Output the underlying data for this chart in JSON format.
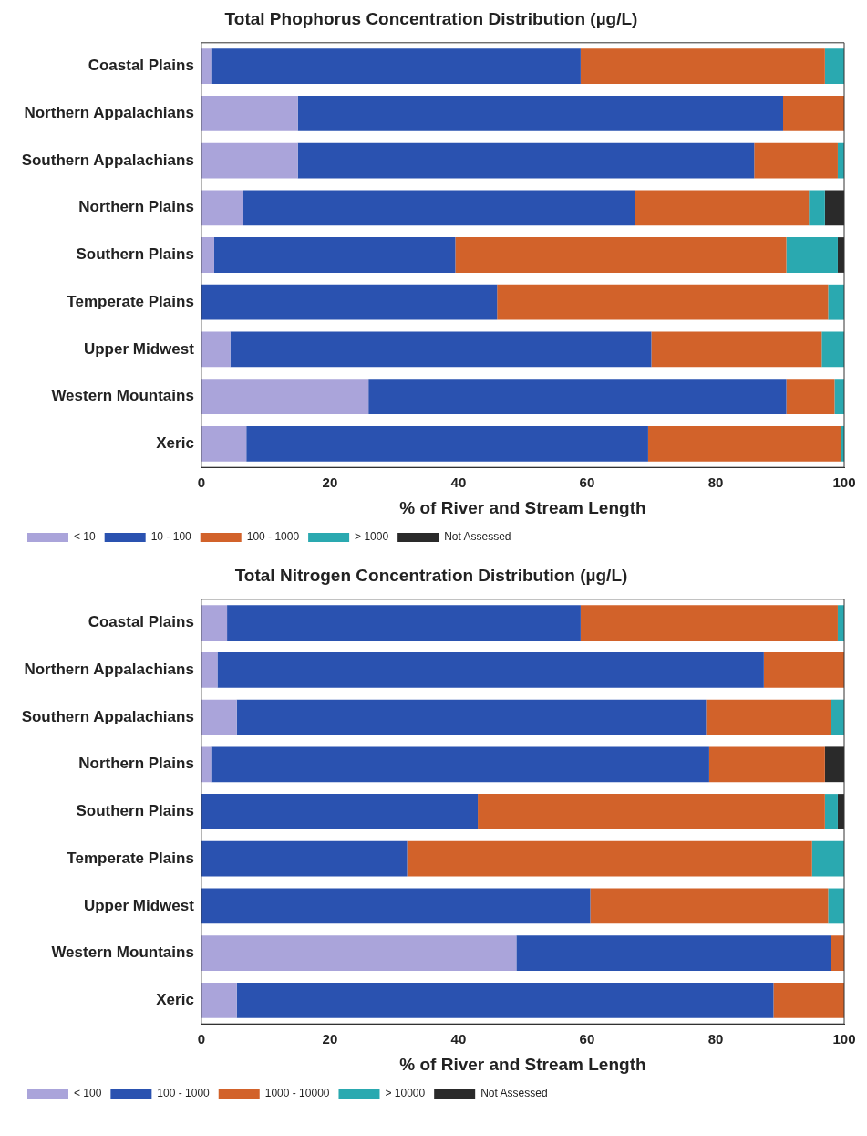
{
  "chart_data": [
    {
      "type": "bar",
      "orientation": "horizontal",
      "stacked": true,
      "title": "Total Phophorus Concentration Distribution (µg/L)",
      "xlabel": "% of River and Stream Length",
      "categories": [
        "Coastal Plains",
        "Northern Appalachians",
        "Southern Appalachians",
        "Northern Plains",
        "Southern Plains",
        "Temperate Plains",
        "Upper Midwest",
        "Western Mountains",
        "Xeric"
      ],
      "xlim": [
        0,
        100
      ],
      "xticks": [
        0,
        20,
        40,
        60,
        80,
        100
      ],
      "grid": false,
      "legend": "bottom left",
      "series": [
        {
          "name": "< 10",
          "color": "#aaa4da",
          "values": [
            1.5,
            15,
            15,
            6.5,
            2,
            0,
            4.5,
            26,
            7
          ]
        },
        {
          "name": "10 - 100",
          "color": "#2a52b0",
          "values": [
            57.5,
            75.5,
            71,
            61,
            37.5,
            46,
            65.5,
            65,
            62.5
          ]
        },
        {
          "name": "100 - 1000",
          "color": "#d2622a",
          "values": [
            38,
            9.5,
            13,
            27,
            51.5,
            51.5,
            26.5,
            7.5,
            30
          ]
        },
        {
          "name": "> 1000",
          "color": "#2aa9b0",
          "values": [
            3,
            0,
            1,
            2.5,
            8,
            2.5,
            3.5,
            1.5,
            0.5
          ]
        },
        {
          "name": "Not Assessed",
          "color": "#2a2a2a",
          "values": [
            0,
            0,
            0,
            3,
            1,
            0,
            0,
            0,
            0
          ]
        }
      ]
    },
    {
      "type": "bar",
      "orientation": "horizontal",
      "stacked": true,
      "title": "Total Nitrogen Concentration Distribution (µg/L)",
      "xlabel": "% of River and Stream Length",
      "categories": [
        "Coastal Plains",
        "Northern Appalachians",
        "Southern Appalachians",
        "Northern Plains",
        "Southern Plains",
        "Temperate Plains",
        "Upper Midwest",
        "Western Mountains",
        "Xeric"
      ],
      "xlim": [
        0,
        100
      ],
      "xticks": [
        0,
        20,
        40,
        60,
        80,
        100
      ],
      "grid": false,
      "legend": "bottom left",
      "series": [
        {
          "name": "< 100",
          "color": "#aaa4da",
          "values": [
            4,
            2.5,
            5.5,
            1.5,
            0,
            0,
            0,
            49,
            5.5
          ]
        },
        {
          "name": "100 - 1000",
          "color": "#2a52b0",
          "values": [
            55,
            85,
            73,
            77.5,
            43,
            32,
            60.5,
            49,
            83.5
          ]
        },
        {
          "name": "1000 - 10000",
          "color": "#d2622a",
          "values": [
            40,
            12.5,
            19.5,
            18,
            54,
            63,
            37,
            2,
            11
          ]
        },
        {
          "name": "> 10000",
          "color": "#2aa9b0",
          "values": [
            1,
            0,
            2,
            0,
            2,
            5,
            2.5,
            0,
            0
          ]
        },
        {
          "name": "Not Assessed",
          "color": "#2a2a2a",
          "values": [
            0,
            0,
            0,
            3,
            1,
            0,
            0,
            0,
            0
          ]
        }
      ]
    }
  ]
}
